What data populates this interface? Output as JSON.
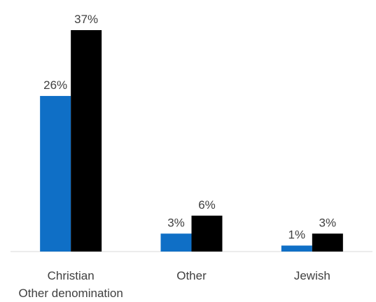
{
  "chart_data": {
    "type": "bar",
    "categories": [
      "Christian\nOther denomination",
      "Other",
      "Jewish"
    ],
    "category_lines": [
      [
        "Christian",
        "Other denomination"
      ],
      [
        "Other"
      ],
      [
        "Jewish"
      ]
    ],
    "series": [
      {
        "color": "#0f6fc6",
        "values": [
          26,
          3,
          1
        ],
        "labels": [
          "26%",
          "3%",
          "1%"
        ]
      },
      {
        "color": "#000000",
        "values": [
          37,
          6,
          3
        ],
        "labels": [
          "37%",
          "6%",
          "3%"
        ]
      }
    ],
    "ylim": [
      0,
      37
    ],
    "grid": false,
    "legend": "none",
    "axis_color": "#d9d9d9",
    "text_color": "#404040"
  }
}
